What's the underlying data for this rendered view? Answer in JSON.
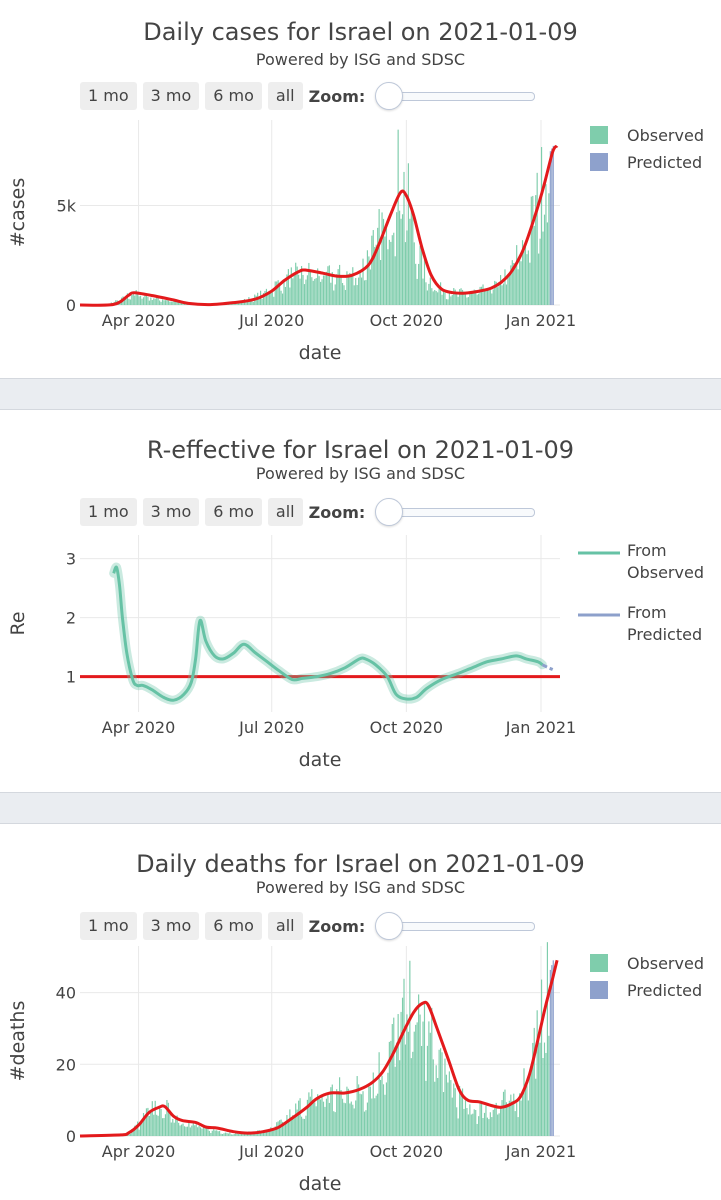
{
  "charts": [
    {
      "title": "Daily cases for Israel on 2021-01-09",
      "subtitle": "Powered by ISG and SDSC",
      "buttons": [
        "1 mo",
        "3 mo",
        "6 mo",
        "all"
      ],
      "zoom_label": "Zoom:",
      "legend": [
        {
          "name": "Observed",
          "color": "#7fcdac"
        },
        {
          "name": "Predicted",
          "color": "#8ea1cc"
        }
      ]
    },
    {
      "title": "R-effective for Israel on 2021-01-09",
      "subtitle": "Powered by ISG and SDSC",
      "buttons": [
        "1 mo",
        "3 mo",
        "6 mo",
        "all"
      ],
      "zoom_label": "Zoom:",
      "legend": [
        {
          "name": "From\nObserved",
          "color": "#66c2a5"
        },
        {
          "name": "From\nPredicted",
          "color": "#8da0cb"
        }
      ]
    },
    {
      "title": "Daily deaths for Israel on 2021-01-09",
      "subtitle": "Powered by ISG and SDSC",
      "buttons": [
        "1 mo",
        "3 mo",
        "6 mo",
        "all"
      ],
      "zoom_label": "Zoom:",
      "legend": [
        {
          "name": "Observed",
          "color": "#7fcdac"
        },
        {
          "name": "Predicted",
          "color": "#8ea1cc"
        }
      ]
    }
  ],
  "chart_data": [
    {
      "type": "bar",
      "title": "Daily cases for Israel on 2021-01-09",
      "subtitle": "Powered by ISG and SDSC",
      "xlabel": "date",
      "ylabel": "#cases",
      "x_range": [
        "2020-02-21",
        "2021-01-14"
      ],
      "ylim": [
        0,
        9300
      ],
      "yticks": [
        {
          "value": 0,
          "label": "0"
        },
        {
          "value": 5000,
          "label": "5k"
        }
      ],
      "xticks": [
        {
          "date": "2020-04-01",
          "label": "Apr 2020"
        },
        {
          "date": "2020-07-01",
          "label": "Jul 2020"
        },
        {
          "date": "2020-10-01",
          "label": "Oct 2020"
        },
        {
          "date": "2021-01-01",
          "label": "Jan 2021"
        }
      ],
      "series": [
        {
          "name": "Observed",
          "color": "#7fcdac",
          "points": [
            [
              "2020-02-21",
              0
            ],
            [
              "2020-03-10",
              30
            ],
            [
              "2020-03-20",
              300
            ],
            [
              "2020-03-27",
              650
            ],
            [
              "2020-04-05",
              500
            ],
            [
              "2020-04-15",
              350
            ],
            [
              "2020-04-30",
              150
            ],
            [
              "2020-05-10",
              40
            ],
            [
              "2020-05-25",
              30
            ],
            [
              "2020-06-10",
              200
            ],
            [
              "2020-06-20",
              450
            ],
            [
              "2020-06-30",
              900
            ],
            [
              "2020-07-10",
              1400
            ],
            [
              "2020-07-20",
              1800
            ],
            [
              "2020-07-30",
              1700
            ],
            [
              "2020-08-10",
              1600
            ],
            [
              "2020-08-20",
              1600
            ],
            [
              "2020-08-30",
              1800
            ],
            [
              "2020-09-05",
              2800
            ],
            [
              "2020-09-12",
              3800
            ],
            [
              "2020-09-20",
              5200
            ],
            [
              "2020-09-25",
              7000
            ],
            [
              "2020-10-01",
              6000
            ],
            [
              "2020-10-05",
              4000
            ],
            [
              "2020-10-12",
              2000
            ],
            [
              "2020-10-20",
              1000
            ],
            [
              "2020-10-30",
              700
            ],
            [
              "2020-11-10",
              650
            ],
            [
              "2020-11-20",
              750
            ],
            [
              "2020-11-30",
              1000
            ],
            [
              "2020-12-10",
              1800
            ],
            [
              "2020-12-20",
              3200
            ],
            [
              "2020-12-28",
              5200
            ],
            [
              "2021-01-03",
              7000
            ],
            [
              "2021-01-06",
              7500
            ]
          ]
        },
        {
          "name": "Predicted",
          "color": "#8ea1cc",
          "points": [
            [
              "2021-01-06",
              7600
            ],
            [
              "2021-01-09",
              8000
            ]
          ]
        }
      ],
      "trend": {
        "color": "#e31a1c",
        "points": [
          [
            "2020-02-21",
            0
          ],
          [
            "2020-03-15",
            30
          ],
          [
            "2020-03-25",
            480
          ],
          [
            "2020-03-29",
            620
          ],
          [
            "2020-04-10",
            480
          ],
          [
            "2020-04-25",
            250
          ],
          [
            "2020-05-05",
            80
          ],
          [
            "2020-05-20",
            20
          ],
          [
            "2020-06-05",
            120
          ],
          [
            "2020-06-20",
            300
          ],
          [
            "2020-07-01",
            700
          ],
          [
            "2020-07-10",
            1250
          ],
          [
            "2020-07-20",
            1700
          ],
          [
            "2020-07-25",
            1750
          ],
          [
            "2020-08-05",
            1600
          ],
          [
            "2020-08-15",
            1450
          ],
          [
            "2020-08-25",
            1500
          ],
          [
            "2020-09-05",
            2000
          ],
          [
            "2020-09-12",
            3000
          ],
          [
            "2020-09-20",
            4500
          ],
          [
            "2020-09-27",
            5650
          ],
          [
            "2020-10-01",
            5500
          ],
          [
            "2020-10-06",
            4500
          ],
          [
            "2020-10-12",
            2800
          ],
          [
            "2020-10-18",
            1500
          ],
          [
            "2020-10-25",
            800
          ],
          [
            "2020-11-02",
            620
          ],
          [
            "2020-11-10",
            600
          ],
          [
            "2020-11-20",
            700
          ],
          [
            "2020-11-28",
            850
          ],
          [
            "2020-12-05",
            1150
          ],
          [
            "2020-12-12",
            1700
          ],
          [
            "2020-12-20",
            2800
          ],
          [
            "2020-12-28",
            4500
          ],
          [
            "2021-01-03",
            6000
          ],
          [
            "2021-01-09",
            7700
          ],
          [
            "2021-01-12",
            8000
          ]
        ]
      }
    },
    {
      "type": "line",
      "title": "R-effective for Israel on 2021-01-09",
      "subtitle": "Powered by ISG and SDSC",
      "xlabel": "date",
      "ylabel": "Re",
      "x_range": [
        "2020-02-21",
        "2021-01-14"
      ],
      "ylim": [
        0.4,
        3.4
      ],
      "yticks": [
        {
          "value": 1,
          "label": "1"
        },
        {
          "value": 2,
          "label": "2"
        },
        {
          "value": 3,
          "label": "3"
        }
      ],
      "xticks": [
        {
          "date": "2020-04-01",
          "label": "Apr 2020"
        },
        {
          "date": "2020-07-01",
          "label": "Jul 2020"
        },
        {
          "date": "2020-10-01",
          "label": "Oct 2020"
        },
        {
          "date": "2021-01-01",
          "label": "Jan 2021"
        }
      ],
      "reference_line": {
        "value": 1,
        "color": "#e31a1c"
      },
      "series": [
        {
          "name": "From Observed",
          "color": "#66c2a5",
          "points": [
            [
              "2020-03-15",
              2.75
            ],
            [
              "2020-03-17",
              2.85
            ],
            [
              "2020-03-19",
              2.55
            ],
            [
              "2020-03-21",
              2.0
            ],
            [
              "2020-03-24",
              1.4
            ],
            [
              "2020-03-28",
              0.95
            ],
            [
              "2020-03-31",
              0.85
            ],
            [
              "2020-04-04",
              0.85
            ],
            [
              "2020-04-10",
              0.78
            ],
            [
              "2020-04-18",
              0.65
            ],
            [
              "2020-04-25",
              0.6
            ],
            [
              "2020-05-02",
              0.7
            ],
            [
              "2020-05-07",
              0.9
            ],
            [
              "2020-05-10",
              1.3
            ],
            [
              "2020-05-13",
              1.95
            ],
            [
              "2020-05-17",
              1.6
            ],
            [
              "2020-05-23",
              1.35
            ],
            [
              "2020-05-29",
              1.3
            ],
            [
              "2020-06-05",
              1.4
            ],
            [
              "2020-06-12",
              1.55
            ],
            [
              "2020-06-20",
              1.4
            ],
            [
              "2020-06-28",
              1.25
            ],
            [
              "2020-07-06",
              1.1
            ],
            [
              "2020-07-15",
              0.95
            ],
            [
              "2020-07-22",
              0.97
            ],
            [
              "2020-08-01",
              1.0
            ],
            [
              "2020-08-10",
              1.05
            ],
            [
              "2020-08-20",
              1.15
            ],
            [
              "2020-08-30",
              1.3
            ],
            [
              "2020-09-03",
              1.3
            ],
            [
              "2020-09-10",
              1.2
            ],
            [
              "2020-09-18",
              1.0
            ],
            [
              "2020-09-24",
              0.7
            ],
            [
              "2020-10-01",
              0.62
            ],
            [
              "2020-10-08",
              0.65
            ],
            [
              "2020-10-15",
              0.8
            ],
            [
              "2020-10-25",
              0.95
            ],
            [
              "2020-11-05",
              1.05
            ],
            [
              "2020-11-15",
              1.15
            ],
            [
              "2020-11-25",
              1.25
            ],
            [
              "2020-12-05",
              1.3
            ],
            [
              "2020-12-15",
              1.35
            ],
            [
              "2020-12-22",
              1.3
            ],
            [
              "2020-12-30",
              1.25
            ],
            [
              "2021-01-02",
              1.2
            ]
          ]
        },
        {
          "name": "From Predicted",
          "color": "#8da0cb",
          "points": [
            [
              "2021-01-02",
              1.2
            ],
            [
              "2021-01-06",
              1.15
            ],
            [
              "2021-01-09",
              1.12
            ]
          ]
        }
      ]
    },
    {
      "type": "bar",
      "title": "Daily deaths for Israel on 2021-01-09",
      "subtitle": "Powered by ISG and SDSC",
      "xlabel": "date",
      "ylabel": "#deaths",
      "x_range": [
        "2020-02-21",
        "2021-01-14"
      ],
      "ylim": [
        0,
        53
      ],
      "yticks": [
        {
          "value": 0,
          "label": "0"
        },
        {
          "value": 20,
          "label": "20"
        },
        {
          "value": 40,
          "label": "40"
        }
      ],
      "xticks": [
        {
          "date": "2020-04-01",
          "label": "Apr 2020"
        },
        {
          "date": "2020-07-01",
          "label": "Jul 2020"
        },
        {
          "date": "2020-10-01",
          "label": "Oct 2020"
        },
        {
          "date": "2021-01-01",
          "label": "Jan 2021"
        }
      ],
      "series": [
        {
          "name": "Observed",
          "color": "#7fcdac",
          "points": [
            [
              "2020-02-21",
              0
            ],
            [
              "2020-03-20",
              0
            ],
            [
              "2020-03-28",
              2
            ],
            [
              "2020-04-05",
              6
            ],
            [
              "2020-04-12",
              9
            ],
            [
              "2020-04-20",
              8
            ],
            [
              "2020-04-30",
              5
            ],
            [
              "2020-05-10",
              3
            ],
            [
              "2020-05-20",
              2
            ],
            [
              "2020-06-01",
              1
            ],
            [
              "2020-06-15",
              1
            ],
            [
              "2020-06-30",
              2
            ],
            [
              "2020-07-10",
              5
            ],
            [
              "2020-07-20",
              9
            ],
            [
              "2020-08-01",
              12
            ],
            [
              "2020-08-15",
              13
            ],
            [
              "2020-08-30",
              14
            ],
            [
              "2020-09-10",
              18
            ],
            [
              "2020-09-20",
              27
            ],
            [
              "2020-10-01",
              38
            ],
            [
              "2020-10-08",
              37
            ],
            [
              "2020-10-15",
              31
            ],
            [
              "2020-10-25",
              22
            ],
            [
              "2020-11-01",
              15
            ],
            [
              "2020-11-10",
              9
            ],
            [
              "2020-11-20",
              8
            ],
            [
              "2020-12-01",
              9
            ],
            [
              "2020-12-15",
              12
            ],
            [
              "2020-12-25",
              24
            ],
            [
              "2021-01-02",
              36
            ],
            [
              "2021-01-06",
              44
            ]
          ]
        },
        {
          "name": "Predicted",
          "color": "#8ea1cc",
          "points": [
            [
              "2021-01-06",
              45
            ],
            [
              "2021-01-09",
              49
            ]
          ]
        }
      ],
      "trend": {
        "color": "#e31a1c",
        "points": [
          [
            "2020-02-21",
            0
          ],
          [
            "2020-03-20",
            0.3
          ],
          [
            "2020-03-25",
            0.8
          ],
          [
            "2020-04-01",
            3
          ],
          [
            "2020-04-08",
            6.5
          ],
          [
            "2020-04-15",
            8
          ],
          [
            "2020-04-19",
            8.2
          ],
          [
            "2020-04-25",
            5.5
          ],
          [
            "2020-05-01",
            4.3
          ],
          [
            "2020-05-10",
            3.8
          ],
          [
            "2020-05-17",
            2.5
          ],
          [
            "2020-05-25",
            2.2
          ],
          [
            "2020-06-05",
            1.2
          ],
          [
            "2020-06-15",
            0.8
          ],
          [
            "2020-06-25",
            1.2
          ],
          [
            "2020-07-05",
            2.3
          ],
          [
            "2020-07-15",
            5
          ],
          [
            "2020-07-25",
            8
          ],
          [
            "2020-08-01",
            10.5
          ],
          [
            "2020-08-10",
            12
          ],
          [
            "2020-08-20",
            12
          ],
          [
            "2020-08-30",
            13
          ],
          [
            "2020-09-08",
            15
          ],
          [
            "2020-09-15",
            18
          ],
          [
            "2020-09-22",
            23
          ],
          [
            "2020-09-29",
            29
          ],
          [
            "2020-10-06",
            34.5
          ],
          [
            "2020-10-12",
            37
          ],
          [
            "2020-10-16",
            36.5
          ],
          [
            "2020-10-22",
            30
          ],
          [
            "2020-10-30",
            21
          ],
          [
            "2020-11-06",
            13
          ],
          [
            "2020-11-12",
            10
          ],
          [
            "2020-11-20",
            9.5
          ],
          [
            "2020-11-28",
            8.5
          ],
          [
            "2020-12-05",
            8
          ],
          [
            "2020-12-12",
            9
          ],
          [
            "2020-12-18",
            11
          ],
          [
            "2020-12-24",
            17
          ],
          [
            "2020-12-30",
            27
          ],
          [
            "2021-01-04",
            36
          ],
          [
            "2021-01-09",
            44
          ],
          [
            "2021-01-12",
            49
          ]
        ]
      }
    }
  ]
}
